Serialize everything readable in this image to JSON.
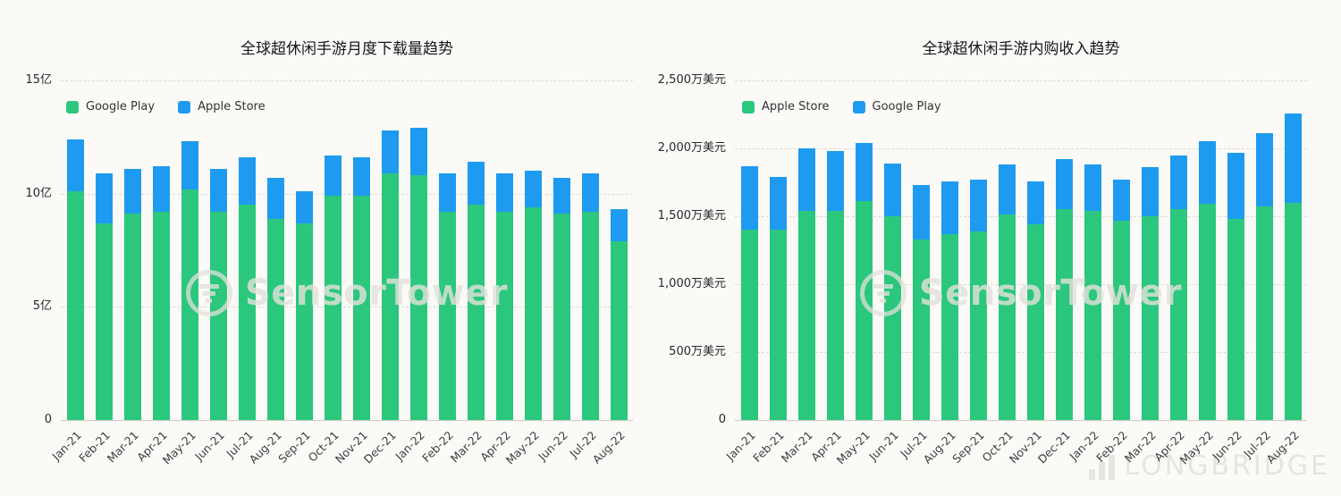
{
  "watermarks": {
    "sensortower": "SensorTower",
    "longbridge": "LONGBRIDGE"
  },
  "chart_data": [
    {
      "type": "bar",
      "stacked": true,
      "title": "全球超休闲手游月度下载量趋势",
      "xlabel": "",
      "ylabel": "",
      "y_unit": "亿",
      "ylim": [
        0,
        15
      ],
      "grid": "dashed-horizontal",
      "legend_position": "top-left",
      "y_ticks": [
        {
          "value": 15,
          "label": "15亿"
        },
        {
          "value": 10,
          "label": "10亿"
        },
        {
          "value": 5,
          "label": "5亿"
        },
        {
          "value": 0,
          "label": "0"
        }
      ],
      "categories": [
        "Jan-21",
        "Feb-21",
        "Mar-21",
        "Apr-21",
        "May-21",
        "Jun-21",
        "Jul-21",
        "Aug-21",
        "Sep-21",
        "Oct-21",
        "Nov-21",
        "Dec-21",
        "Jan-22",
        "Feb-22",
        "Mar-22",
        "Apr-22",
        "May-22",
        "Jun-22",
        "Jul-22",
        "Aug-22"
      ],
      "series": [
        {
          "name": "Google Play",
          "color": "#2bc77d",
          "values": [
            10.1,
            8.7,
            9.1,
            9.2,
            10.2,
            9.2,
            9.5,
            8.9,
            8.7,
            9.9,
            9.9,
            10.9,
            10.8,
            9.2,
            9.5,
            9.2,
            9.4,
            9.1,
            9.2,
            7.9
          ]
        },
        {
          "name": "Apple Store",
          "color": "#1e9bf0",
          "values": [
            2.3,
            2.2,
            2.0,
            2.0,
            2.1,
            1.9,
            2.1,
            1.8,
            1.4,
            1.8,
            1.7,
            1.9,
            2.1,
            1.7,
            1.9,
            1.7,
            1.6,
            1.6,
            1.7,
            1.4
          ]
        }
      ]
    },
    {
      "type": "bar",
      "stacked": true,
      "title": "全球超休闲手游内购收入趋势",
      "xlabel": "",
      "ylabel": "",
      "y_unit": "万美元",
      "ylim": [
        0,
        2500
      ],
      "grid": "dashed-horizontal",
      "legend_position": "top-left",
      "y_ticks": [
        {
          "value": 2500,
          "label": "2,500万美元"
        },
        {
          "value": 2000,
          "label": "2,000万美元"
        },
        {
          "value": 1500,
          "label": "1,500万美元"
        },
        {
          "value": 1000,
          "label": "1,000万美元"
        },
        {
          "value": 500,
          "label": "500万美元"
        },
        {
          "value": 0,
          "label": "0"
        }
      ],
      "categories": [
        "Jan-21",
        "Feb-21",
        "Mar-21",
        "Apr-21",
        "May-21",
        "Jun-21",
        "Jul-21",
        "Aug-21",
        "Sep-21",
        "Oct-21",
        "Nov-21",
        "Dec-21",
        "Jan-22",
        "Feb-22",
        "Mar-22",
        "Apr-22",
        "May-22",
        "Jun-22",
        "Jul-22",
        "Aug-22"
      ],
      "series": [
        {
          "name": "Apple Store",
          "color": "#2bc77d",
          "values": [
            1400,
            1400,
            1540,
            1540,
            1610,
            1500,
            1330,
            1370,
            1390,
            1510,
            1440,
            1550,
            1540,
            1470,
            1500,
            1550,
            1590,
            1480,
            1570,
            1600
          ]
        },
        {
          "name": "Google Play",
          "color": "#1e9bf0",
          "values": [
            470,
            390,
            460,
            440,
            430,
            390,
            400,
            390,
            380,
            370,
            320,
            370,
            340,
            300,
            360,
            400,
            460,
            490,
            540,
            660
          ]
        }
      ]
    }
  ]
}
